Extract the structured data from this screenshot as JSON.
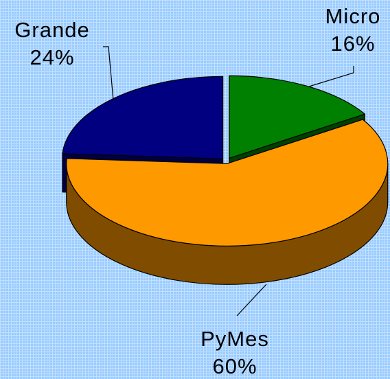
{
  "chart_data": {
    "type": "pie3d",
    "categories": [
      "Micro",
      "PyMes",
      "Grande"
    ],
    "values": [
      16,
      60,
      24
    ],
    "value_labels": [
      "16%",
      "60%",
      "24%"
    ],
    "colors": [
      "#008000",
      "#ff9900",
      "#000080"
    ]
  }
}
